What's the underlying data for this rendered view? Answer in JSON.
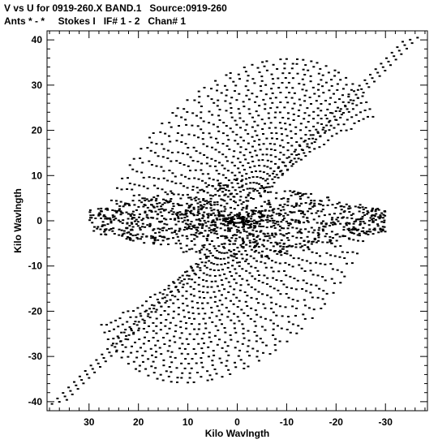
{
  "chart_data": {
    "type": "scatter",
    "title": "V vs U for 0919-260.X BAND.1   Source:0919-260",
    "subtitle": "Ants * - *     Stokes I   IF# 1 - 2   Chan# 1",
    "xlabel": "Kilo Wavlngth",
    "ylabel": "Kilo Wavlngth",
    "xlim": [
      38.5,
      -38.5
    ],
    "ylim": [
      -42,
      42
    ],
    "x_ticks": [
      30,
      20,
      10,
      0,
      -10,
      -20,
      -30
    ],
    "y_ticks": [
      40,
      30,
      20,
      10,
      0,
      -10,
      -20,
      -30,
      -40
    ],
    "grid": false,
    "marker_color": "#000000",
    "description_of_pattern": {
      "diagonal_track_endpoints": [
        [
          37.5,
          -40.5
        ],
        [
          -36.5,
          40.5
        ]
      ],
      "max_abs_v_on_tracks": 34,
      "max_abs_u_on_central_band": 30,
      "central_band_v_range": [
        -8,
        8
      ]
    }
  }
}
